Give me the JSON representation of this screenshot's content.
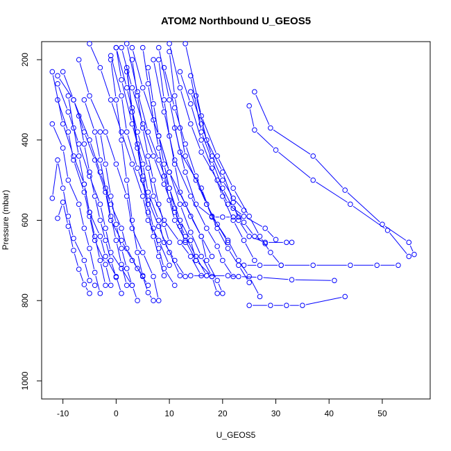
{
  "chart_data": {
    "type": "line",
    "title": "ATOM2 Northbound U_GEOS5",
    "xlabel": "U_GEOS5",
    "ylabel": "Pressure (mbar)",
    "xlim": [
      -14,
      59
    ],
    "ylim": [
      1045,
      155
    ],
    "y_reversed": true,
    "x_ticks": [
      -10,
      0,
      10,
      20,
      30,
      40,
      50
    ],
    "y_ticks": [
      200,
      400,
      600,
      800,
      1000
    ],
    "grid": false,
    "legend": "none",
    "colors": {
      "series": "#0000ff",
      "axis": "#000000",
      "background": "#ffffff"
    },
    "marker": "open-circle",
    "series": [
      {
        "x": [
          56,
          55,
          50,
          43,
          37,
          29,
          26
        ],
        "y": [
          685,
          655,
          610,
          525,
          440,
          370,
          280
        ]
      },
      {
        "x": [
          55,
          51,
          44,
          37,
          30,
          26,
          25
        ],
        "y": [
          690,
          625,
          560,
          500,
          425,
          375,
          315
        ]
      },
      {
        "x": [
          53,
          49,
          44,
          37,
          31,
          27,
          24
        ],
        "y": [
          712,
          712,
          712,
          712,
          712,
          712,
          712
        ]
      },
      {
        "x": [
          43,
          35,
          32,
          29,
          25
        ],
        "y": [
          790,
          812,
          812,
          812,
          812
        ]
      },
      {
        "x": [
          41,
          33,
          27,
          23,
          21,
          17,
          14
        ],
        "y": [
          750,
          748,
          742,
          740,
          738,
          738,
          738
        ]
      },
      {
        "x": [
          33,
          32,
          28,
          25,
          23,
          22,
          20,
          17,
          15
        ],
        "y": [
          655,
          655,
          655,
          640,
          600,
          555,
          480,
          400,
          290
        ]
      },
      {
        "x": [
          30,
          28,
          24,
          21,
          19,
          16,
          14,
          12,
          10
        ],
        "y": [
          648,
          620,
          590,
          560,
          500,
          430,
          360,
          270,
          160
        ]
      },
      {
        "x": [
          28,
          26,
          24,
          22,
          20,
          18,
          16,
          14
        ],
        "y": [
          658,
          640,
          605,
          570,
          520,
          450,
          380,
          240
        ]
      },
      {
        "x": [
          27,
          25,
          23,
          21,
          18,
          16,
          12,
          10,
          8
        ],
        "y": [
          790,
          740,
          700,
          650,
          590,
          520,
          430,
          300,
          170
        ]
      },
      {
        "x": [
          23,
          22,
          20,
          18,
          15,
          13,
          11
        ],
        "y": [
          592,
          592,
          592,
          592,
          560,
          480,
          370
        ]
      },
      {
        "x": [
          22,
          20,
          19,
          17,
          14,
          11,
          9,
          7
        ],
        "y": [
          740,
          700,
          665,
          620,
          540,
          450,
          330,
          200
        ]
      },
      {
        "x": [
          20,
          19,
          17,
          16,
          13,
          10,
          8,
          5,
          3
        ],
        "y": [
          782,
          750,
          700,
          640,
          560,
          480,
          390,
          270,
          170
        ]
      },
      {
        "x": [
          18,
          15,
          14,
          12,
          10,
          8,
          6,
          4,
          2
        ],
        "y": [
          740,
          700,
          650,
          600,
          520,
          450,
          380,
          280,
          160
        ]
      },
      {
        "x": [
          16,
          14,
          12,
          9,
          7,
          6,
          4,
          2,
          0
        ],
        "y": [
          738,
          690,
          655,
          600,
          540,
          470,
          380,
          270,
          170
        ]
      },
      {
        "x": [
          13,
          11,
          9,
          8,
          6,
          5,
          3,
          1,
          0
        ],
        "y": [
          740,
          700,
          655,
          600,
          530,
          460,
          360,
          250,
          170
        ]
      },
      {
        "x": [
          12,
          10,
          8,
          6,
          4,
          2,
          1,
          -1
        ],
        "y": [
          738,
          680,
          615,
          550,
          470,
          380,
          290,
          190
        ]
      },
      {
        "x": [
          10,
          8,
          6,
          5,
          3,
          1,
          -1,
          -3,
          -5
        ],
        "y": [
          712,
          650,
          600,
          540,
          460,
          380,
          300,
          220,
          160
        ]
      },
      {
        "x": [
          8,
          7,
          5,
          3,
          2,
          0,
          -2,
          -5,
          -7
        ],
        "y": [
          800,
          740,
          680,
          620,
          540,
          460,
          380,
          290,
          200
        ]
      },
      {
        "x": [
          6,
          4,
          2,
          1,
          -1,
          -3,
          -5,
          -8,
          -10
        ],
        "y": [
          762,
          720,
          670,
          620,
          560,
          480,
          400,
          300,
          230
        ]
      },
      {
        "x": [
          5,
          3,
          1,
          -1,
          -2,
          -4,
          -6,
          -8,
          -11
        ],
        "y": [
          738,
          700,
          650,
          600,
          530,
          450,
          380,
          300,
          240
        ]
      },
      {
        "x": [
          3,
          1,
          -1,
          -2,
          -3,
          -5,
          -7,
          -9,
          -11
        ],
        "y": [
          762,
          720,
          680,
          620,
          560,
          490,
          410,
          330,
          260
        ]
      },
      {
        "x": [
          1,
          0,
          -2,
          -3,
          -5,
          -6,
          -8,
          -10,
          -12
        ],
        "y": [
          782,
          740,
          690,
          640,
          580,
          510,
          440,
          360,
          230
        ]
      },
      {
        "x": [
          -1,
          -2,
          -4,
          -5,
          -6,
          -8,
          -9,
          -11
        ],
        "y": [
          762,
          710,
          650,
          590,
          530,
          450,
          380,
          300
        ]
      },
      {
        "x": [
          -3,
          -4,
          -5,
          -6,
          -7,
          -9,
          -10,
          -12
        ],
        "y": [
          782,
          730,
          670,
          620,
          560,
          500,
          420,
          360
        ]
      },
      {
        "x": [
          -4,
          -5,
          -6,
          -8,
          -9,
          -10,
          -11,
          -12
        ],
        "y": [
          762,
          750,
          700,
          645,
          590,
          520,
          450,
          545
        ]
      },
      {
        "x": [
          -5,
          -6,
          -7,
          -8,
          -9,
          -10,
          -11
        ],
        "y": [
          782,
          760,
          722,
          675,
          615,
          555,
          595
        ]
      },
      {
        "x": [
          7,
          6,
          5,
          4,
          3,
          2,
          1,
          0,
          -1
        ],
        "y": [
          800,
          780,
          740,
          680,
          600,
          500,
          400,
          300,
          200
        ]
      },
      {
        "x": [
          9,
          8,
          7,
          6,
          5,
          4,
          3,
          2
        ],
        "y": [
          738,
          690,
          640,
          580,
          500,
          420,
          330,
          220
        ]
      },
      {
        "x": [
          15,
          13,
          11,
          10,
          9,
          8,
          7,
          6,
          5
        ],
        "y": [
          700,
          650,
          600,
          550,
          490,
          420,
          350,
          260,
          170
        ]
      },
      {
        "x": [
          18,
          16,
          14,
          12,
          11,
          10,
          9,
          8
        ],
        "y": [
          690,
          640,
          590,
          530,
          460,
          390,
          300,
          200
        ]
      },
      {
        "x": [
          21,
          19,
          17,
          15,
          13,
          12,
          11,
          10
        ],
        "y": [
          655,
          610,
          560,
          500,
          440,
          370,
          290,
          180
        ]
      },
      {
        "x": [
          26,
          24,
          22,
          20,
          18,
          16,
          14,
          12
        ],
        "y": [
          700,
          650,
          600,
          540,
          470,
          400,
          310,
          230
        ]
      },
      {
        "x": [
          31,
          29,
          27,
          25,
          22,
          19,
          16,
          13
        ],
        "y": [
          712,
          680,
          640,
          590,
          520,
          440,
          340,
          160
        ]
      },
      {
        "x": [
          4,
          3,
          2,
          1,
          0,
          -1,
          -2,
          -3
        ],
        "y": [
          800,
          762,
          720,
          670,
          610,
          540,
          460,
          380
        ]
      },
      {
        "x": [
          11,
          9,
          8,
          7,
          6,
          5,
          4,
          3,
          2
        ],
        "y": [
          762,
          720,
          670,
          620,
          560,
          490,
          410,
          320,
          230
        ]
      },
      {
        "x": [
          -2,
          -3,
          -4,
          -5,
          -6,
          -7,
          -8,
          -9
        ],
        "y": [
          762,
          700,
          640,
          580,
          510,
          440,
          370,
          290
        ]
      },
      {
        "x": [
          2,
          1,
          0,
          -1,
          -2,
          -3,
          -4,
          -6
        ],
        "y": [
          762,
          710,
          650,
          590,
          520,
          450,
          380,
          300
        ]
      },
      {
        "x": [
          24,
          22,
          20,
          18,
          16,
          14
        ],
        "y": [
          575,
          545,
          500,
          440,
          360,
          280
        ]
      },
      {
        "x": [
          17,
          15,
          13,
          11,
          9,
          7,
          5,
          3,
          1
        ],
        "y": [
          738,
          690,
          640,
          580,
          510,
          440,
          360,
          270,
          170
        ]
      },
      {
        "x": [
          19,
          18,
          16,
          14,
          12,
          10,
          8
        ],
        "y": [
          782,
          740,
          690,
          630,
          560,
          480,
          390
        ]
      },
      {
        "x": [
          13,
          12,
          11,
          10,
          9,
          8,
          7,
          6
        ],
        "y": [
          655,
          615,
          570,
          520,
          460,
          390,
          310,
          220
        ]
      },
      {
        "x": [
          25,
          23,
          21,
          19,
          17,
          15,
          13,
          11,
          9
        ],
        "y": [
          755,
          712,
          670,
          620,
          560,
          490,
          410,
          320,
          220
        ]
      },
      {
        "x": [
          0,
          -1,
          -2,
          -3,
          -4,
          -5,
          -6,
          -7
        ],
        "y": [
          742,
          700,
          650,
          600,
          540,
          480,
          410,
          340
        ]
      },
      {
        "x": [
          10,
          9,
          8,
          7,
          6,
          5,
          4,
          3
        ],
        "y": [
          655,
          610,
          560,
          500,
          440,
          370,
          290,
          200
        ]
      }
    ]
  }
}
